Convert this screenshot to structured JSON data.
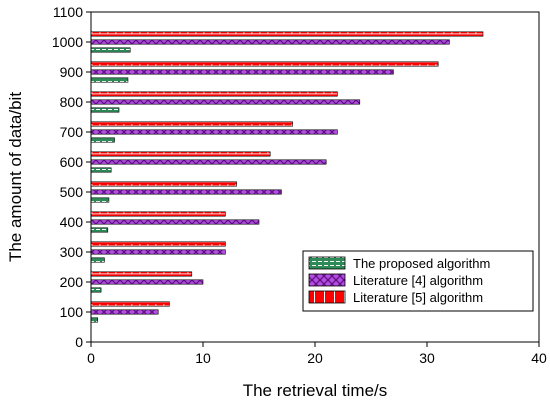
{
  "chart_data": {
    "type": "bar",
    "orientation": "horizontal",
    "xlabel": "The retrieval time/s",
    "ylabel": "The amount of data/bit",
    "xlim": [
      0,
      40
    ],
    "ylim": [
      0,
      1100
    ],
    "xticks": [
      "0",
      "10",
      "20",
      "30",
      "40"
    ],
    "yticks": [
      "0",
      "100",
      "200",
      "300",
      "400",
      "500",
      "600",
      "700",
      "800",
      "900",
      "1000",
      "1100"
    ],
    "categories": [
      100,
      200,
      300,
      400,
      500,
      600,
      700,
      800,
      900,
      1000
    ],
    "grid": false,
    "legend_position": "bottom-right",
    "series": [
      {
        "name": "The proposed algorithm",
        "color": "#2e8b57",
        "pattern": "horizontal-dashes",
        "values": [
          0.6,
          0.9,
          1.2,
          1.5,
          1.6,
          1.8,
          2.1,
          2.5,
          3.3,
          3.5
        ]
      },
      {
        "name": "Literature [4] algorithm",
        "color": "#9933cc",
        "pattern": "crosshatch",
        "values": [
          6,
          10,
          12,
          15,
          17,
          21,
          22,
          24,
          27,
          32
        ]
      },
      {
        "name": "Literature [5] algorithm",
        "color": "#ff0000",
        "pattern": "brick",
        "values": [
          7,
          9,
          12,
          12,
          13,
          16,
          18,
          22,
          31,
          35
        ]
      }
    ]
  }
}
